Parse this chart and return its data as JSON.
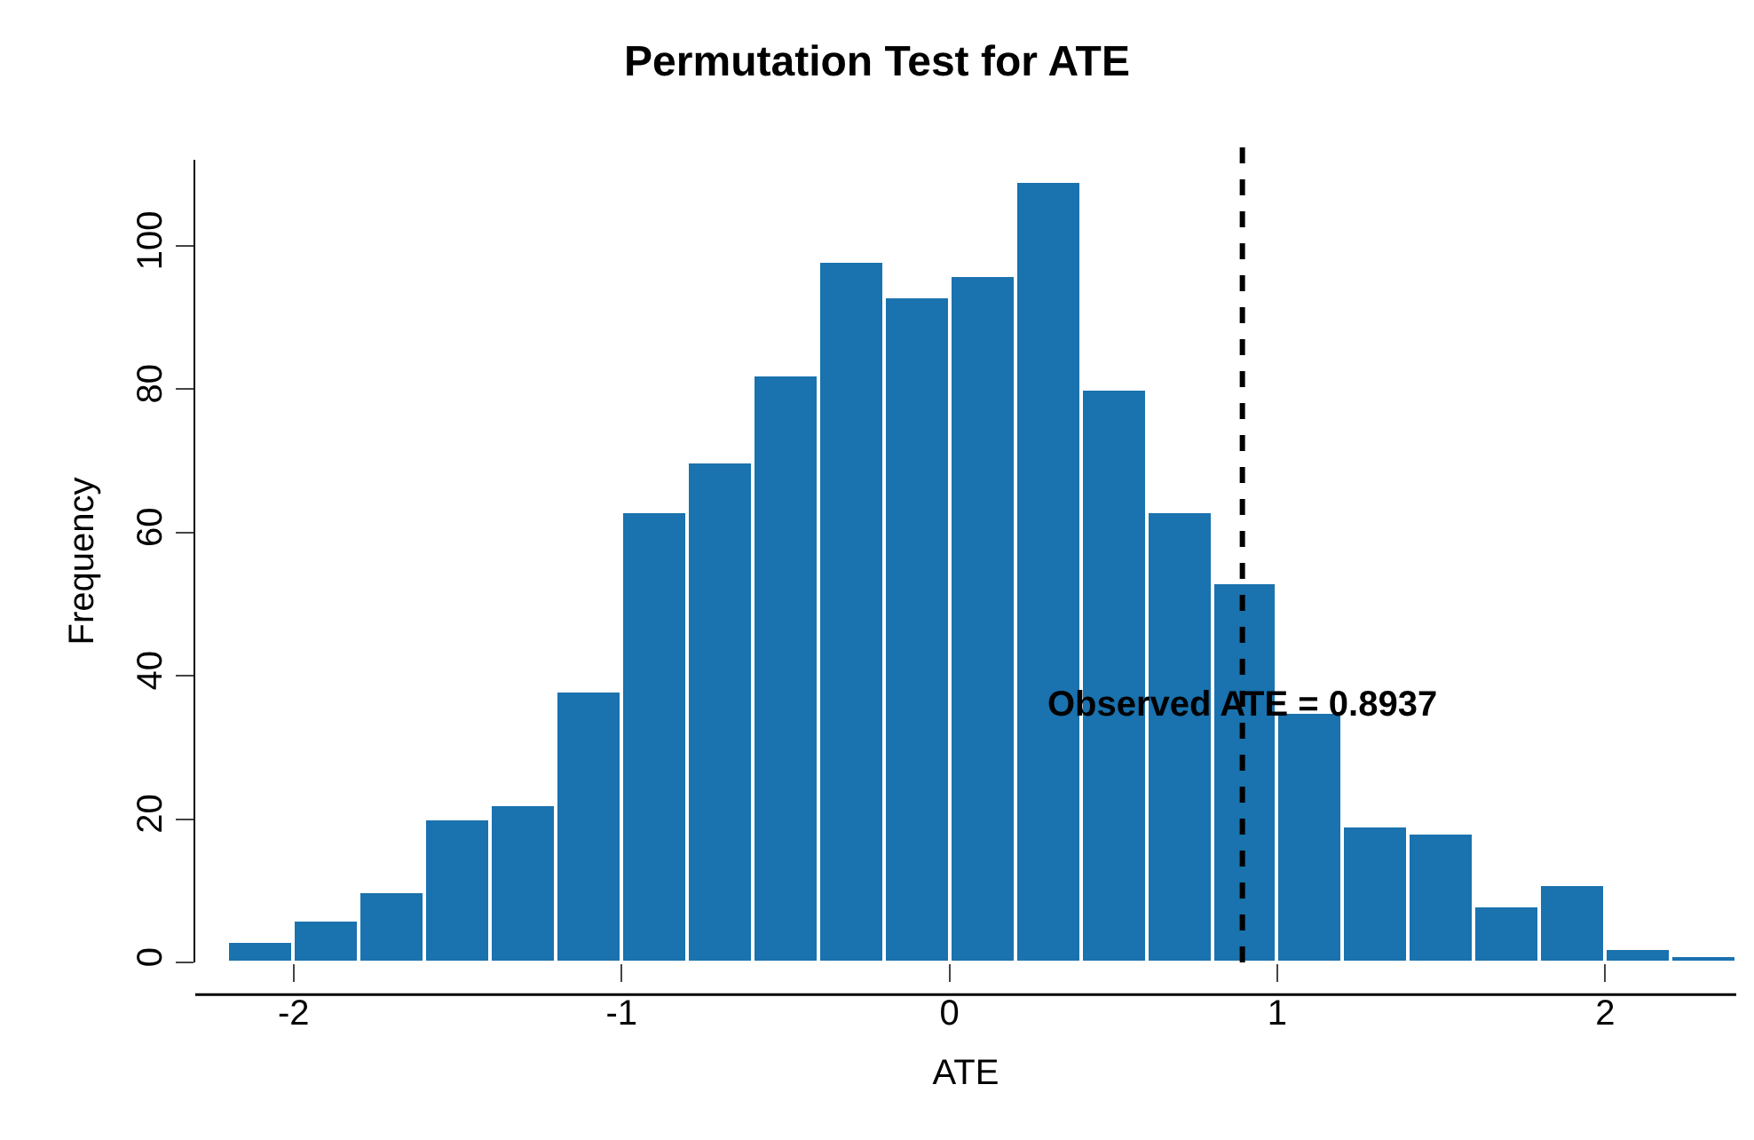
{
  "chart_data": {
    "type": "histogram",
    "title": "Permutation Test for ATE",
    "xlabel": "ATE",
    "ylabel": "Frequency",
    "bins": [
      -2.2,
      -2.0,
      -1.8,
      -1.6,
      -1.4,
      -1.2,
      -1.0,
      -0.8,
      -0.6,
      -0.4,
      -0.2,
      0.0,
      0.2,
      0.4,
      0.6,
      0.8,
      1.0,
      1.2,
      1.4,
      1.6,
      1.8,
      2.0,
      2.2,
      2.4
    ],
    "values": [
      3,
      6,
      10,
      20,
      22,
      38,
      63,
      70,
      82,
      98,
      93,
      96,
      109,
      80,
      63,
      53,
      35,
      19,
      18,
      8,
      11,
      2,
      1
    ],
    "color": "#1a72ae",
    "xlim": [
      -2.3,
      2.4
    ],
    "ylim": [
      0,
      112
    ],
    "xticks": [
      -2,
      -1,
      0,
      1,
      2
    ],
    "yticks": [
      0,
      20,
      40,
      60,
      80,
      100
    ],
    "ref_lines": [
      {
        "axis": "x",
        "value": 0.8937,
        "color": "#000000",
        "line_style": "dashed"
      }
    ],
    "annotations": [
      {
        "text": "Observed ATE = 0.8937",
        "x": 0.8937,
        "y": 36
      }
    ]
  }
}
